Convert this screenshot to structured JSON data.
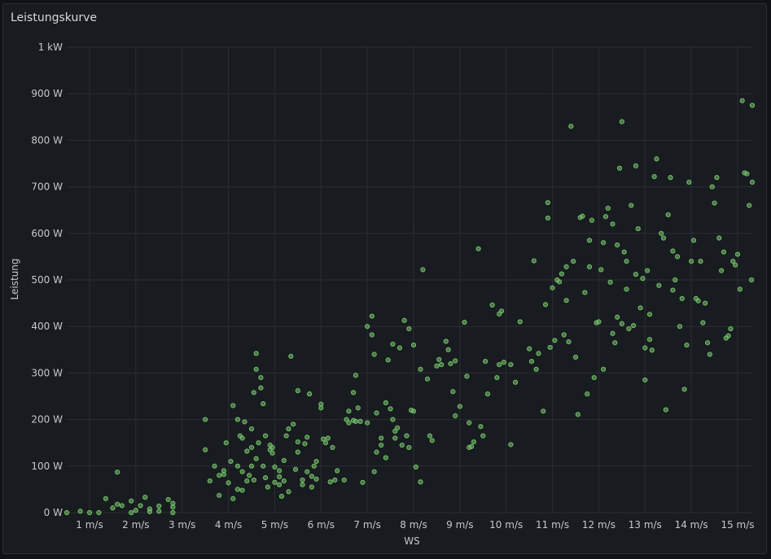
{
  "panel": {
    "title": "Leistungskurve"
  },
  "colors": {
    "background": "#111217",
    "panel": "#181b1f",
    "point": "#73bf69",
    "text": "#c7c8ca"
  },
  "chart_data": {
    "type": "scatter",
    "title": "Leistungskurve",
    "xlabel": "WS",
    "ylabel": "Leistung",
    "xlim": [
      0.25,
      15.5
    ],
    "ylim": [
      0,
      1000
    ],
    "grid": true,
    "legend": "none",
    "x_ticks": [
      {
        "value": 1,
        "label": "1 m/s"
      },
      {
        "value": 2,
        "label": "2 m/s"
      },
      {
        "value": 3,
        "label": "3 m/s"
      },
      {
        "value": 4,
        "label": "4 m/s"
      },
      {
        "value": 5,
        "label": "5 m/s"
      },
      {
        "value": 6,
        "label": "6 m/s"
      },
      {
        "value": 7,
        "label": "7 m/s"
      },
      {
        "value": 8,
        "label": "8 m/s"
      },
      {
        "value": 9,
        "label": "9 m/s"
      },
      {
        "value": 10,
        "label": "10 m/s"
      },
      {
        "value": 11,
        "label": "11 m/s"
      },
      {
        "value": 12,
        "label": "12 m/s"
      },
      {
        "value": 13,
        "label": "13 m/s"
      },
      {
        "value": 14,
        "label": "14 m/s"
      },
      {
        "value": 15,
        "label": "15 m/s"
      }
    ],
    "y_ticks": [
      {
        "value": 0,
        "label": "0 W"
      },
      {
        "value": 100,
        "label": "100 W"
      },
      {
        "value": 200,
        "label": "200 W"
      },
      {
        "value": 300,
        "label": "300 W"
      },
      {
        "value": 400,
        "label": "400 W"
      },
      {
        "value": 500,
        "label": "500 W"
      },
      {
        "value": 600,
        "label": "600 W"
      },
      {
        "value": 700,
        "label": "700 W"
      },
      {
        "value": 800,
        "label": "800 W"
      },
      {
        "value": 900,
        "label": "900 W"
      },
      {
        "value": 1000,
        "label": "1 kW"
      }
    ],
    "points": [
      [
        0.3,
        0
      ],
      [
        0.8,
        3
      ],
      [
        1.0,
        0
      ],
      [
        1.2,
        0
      ],
      [
        1.35,
        30
      ],
      [
        1.5,
        10
      ],
      [
        1.6,
        87
      ],
      [
        1.6,
        18
      ],
      [
        1.7,
        15
      ],
      [
        1.9,
        0
      ],
      [
        1.9,
        25
      ],
      [
        2.0,
        5
      ],
      [
        2.1,
        15
      ],
      [
        2.2,
        33
      ],
      [
        2.3,
        8
      ],
      [
        2.3,
        2
      ],
      [
        2.5,
        14
      ],
      [
        2.5,
        3
      ],
      [
        2.7,
        28
      ],
      [
        2.8,
        20
      ],
      [
        2.8,
        12
      ],
      [
        2.8,
        0
      ],
      [
        3.5,
        135
      ],
      [
        3.5,
        200
      ],
      [
        3.6,
        68
      ],
      [
        3.7,
        100
      ],
      [
        3.8,
        37
      ],
      [
        3.8,
        80
      ],
      [
        3.9,
        82
      ],
      [
        3.9,
        90
      ],
      [
        3.95,
        150
      ],
      [
        4.0,
        64
      ],
      [
        4.05,
        110
      ],
      [
        4.1,
        30
      ],
      [
        4.1,
        230
      ],
      [
        4.2,
        100
      ],
      [
        4.2,
        50
      ],
      [
        4.2,
        200
      ],
      [
        4.25,
        165
      ],
      [
        4.3,
        88
      ],
      [
        4.3,
        160
      ],
      [
        4.3,
        48
      ],
      [
        4.35,
        195
      ],
      [
        4.4,
        68
      ],
      [
        4.4,
        132
      ],
      [
        4.45,
        80
      ],
      [
        4.5,
        140
      ],
      [
        4.5,
        180
      ],
      [
        4.5,
        100
      ],
      [
        4.55,
        258
      ],
      [
        4.55,
        70
      ],
      [
        4.6,
        308
      ],
      [
        4.6,
        342
      ],
      [
        4.6,
        116
      ],
      [
        4.65,
        150
      ],
      [
        4.7,
        290
      ],
      [
        4.7,
        268
      ],
      [
        4.75,
        100
      ],
      [
        4.75,
        234
      ],
      [
        4.8,
        165
      ],
      [
        4.8,
        75
      ],
      [
        4.85,
        55
      ],
      [
        4.9,
        135
      ],
      [
        4.9,
        145
      ],
      [
        4.95,
        128
      ],
      [
        4.95,
        140
      ],
      [
        5.0,
        65
      ],
      [
        5.0,
        98
      ],
      [
        5.1,
        90
      ],
      [
        5.1,
        77
      ],
      [
        5.1,
        60
      ],
      [
        5.15,
        35
      ],
      [
        5.2,
        112
      ],
      [
        5.2,
        68
      ],
      [
        5.25,
        165
      ],
      [
        5.3,
        180
      ],
      [
        5.3,
        45
      ],
      [
        5.35,
        336
      ],
      [
        5.4,
        190
      ],
      [
        5.45,
        93
      ],
      [
        5.5,
        130
      ],
      [
        5.5,
        262
      ],
      [
        5.5,
        152
      ],
      [
        5.6,
        60
      ],
      [
        5.6,
        70
      ],
      [
        5.65,
        148
      ],
      [
        5.7,
        88
      ],
      [
        5.7,
        162
      ],
      [
        5.75,
        255
      ],
      [
        5.8,
        55
      ],
      [
        5.8,
        78
      ],
      [
        5.85,
        100
      ],
      [
        5.9,
        72
      ],
      [
        5.9,
        110
      ],
      [
        6.0,
        233
      ],
      [
        6.0,
        225
      ],
      [
        6.05,
        158
      ],
      [
        6.1,
        150
      ],
      [
        6.15,
        160
      ],
      [
        6.2,
        66
      ],
      [
        6.25,
        140
      ],
      [
        6.3,
        70
      ],
      [
        6.35,
        90
      ],
      [
        6.5,
        70
      ],
      [
        6.55,
        200
      ],
      [
        6.6,
        193
      ],
      [
        6.6,
        218
      ],
      [
        6.7,
        198
      ],
      [
        6.7,
        258
      ],
      [
        6.75,
        295
      ],
      [
        6.75,
        196
      ],
      [
        6.8,
        225
      ],
      [
        6.85,
        196
      ],
      [
        6.9,
        65
      ],
      [
        7.0,
        400
      ],
      [
        7.0,
        193
      ],
      [
        7.1,
        382
      ],
      [
        7.1,
        422
      ],
      [
        7.15,
        340
      ],
      [
        7.15,
        88
      ],
      [
        7.2,
        214
      ],
      [
        7.2,
        130
      ],
      [
        7.3,
        145
      ],
      [
        7.3,
        160
      ],
      [
        7.4,
        118
      ],
      [
        7.4,
        236
      ],
      [
        7.45,
        328
      ],
      [
        7.5,
        223
      ],
      [
        7.55,
        362
      ],
      [
        7.55,
        200
      ],
      [
        7.6,
        160
      ],
      [
        7.6,
        175
      ],
      [
        7.65,
        182
      ],
      [
        7.7,
        354
      ],
      [
        7.75,
        145
      ],
      [
        7.8,
        413
      ],
      [
        7.85,
        165
      ],
      [
        7.9,
        395
      ],
      [
        7.9,
        140
      ],
      [
        7.95,
        220
      ],
      [
        8.0,
        218
      ],
      [
        8.0,
        360
      ],
      [
        8.05,
        98
      ],
      [
        8.15,
        308
      ],
      [
        8.15,
        66
      ],
      [
        8.2,
        522
      ],
      [
        8.3,
        287
      ],
      [
        8.35,
        165
      ],
      [
        8.4,
        155
      ],
      [
        8.5,
        315
      ],
      [
        8.55,
        329
      ],
      [
        8.6,
        318
      ],
      [
        8.7,
        368
      ],
      [
        8.75,
        350
      ],
      [
        8.8,
        320
      ],
      [
        8.85,
        260
      ],
      [
        8.9,
        208
      ],
      [
        8.9,
        326
      ],
      [
        9.0,
        228
      ],
      [
        9.1,
        409
      ],
      [
        9.15,
        293
      ],
      [
        9.2,
        140
      ],
      [
        9.2,
        193
      ],
      [
        9.25,
        142
      ],
      [
        9.3,
        152
      ],
      [
        9.4,
        567
      ],
      [
        9.45,
        185
      ],
      [
        9.5,
        165
      ],
      [
        9.55,
        325
      ],
      [
        9.6,
        255
      ],
      [
        9.7,
        446
      ],
      [
        9.8,
        290
      ],
      [
        9.85,
        427
      ],
      [
        9.85,
        318
      ],
      [
        9.9,
        433
      ],
      [
        9.95,
        323
      ],
      [
        10.1,
        146
      ],
      [
        10.1,
        318
      ],
      [
        10.2,
        280
      ],
      [
        10.3,
        410
      ],
      [
        10.5,
        352
      ],
      [
        10.55,
        325
      ],
      [
        10.6,
        541
      ],
      [
        10.65,
        308
      ],
      [
        10.7,
        342
      ],
      [
        10.8,
        218
      ],
      [
        10.85,
        447
      ],
      [
        10.9,
        666
      ],
      [
        10.9,
        633
      ],
      [
        10.95,
        355
      ],
      [
        11.0,
        483
      ],
      [
        11.05,
        370
      ],
      [
        11.1,
        500
      ],
      [
        11.15,
        496
      ],
      [
        11.2,
        513
      ],
      [
        11.25,
        382
      ],
      [
        11.3,
        528
      ],
      [
        11.3,
        456
      ],
      [
        11.35,
        367
      ],
      [
        11.4,
        830
      ],
      [
        11.45,
        540
      ],
      [
        11.5,
        334
      ],
      [
        11.55,
        211
      ],
      [
        11.6,
        634
      ],
      [
        11.65,
        637
      ],
      [
        11.7,
        473
      ],
      [
        11.75,
        255
      ],
      [
        11.8,
        528
      ],
      [
        11.8,
        585
      ],
      [
        11.85,
        628
      ],
      [
        11.9,
        290
      ],
      [
        11.95,
        408
      ],
      [
        12.0,
        410
      ],
      [
        12.05,
        522
      ],
      [
        12.1,
        580
      ],
      [
        12.1,
        308
      ],
      [
        12.15,
        636
      ],
      [
        12.2,
        654
      ],
      [
        12.25,
        495
      ],
      [
        12.3,
        620
      ],
      [
        12.3,
        385
      ],
      [
        12.35,
        365
      ],
      [
        12.4,
        575
      ],
      [
        12.4,
        420
      ],
      [
        12.45,
        740
      ],
      [
        12.5,
        406
      ],
      [
        12.5,
        840
      ],
      [
        12.55,
        560
      ],
      [
        12.6,
        540
      ],
      [
        12.6,
        480
      ],
      [
        12.65,
        395
      ],
      [
        12.7,
        660
      ],
      [
        12.75,
        402
      ],
      [
        12.8,
        512
      ],
      [
        12.8,
        745
      ],
      [
        12.85,
        610
      ],
      [
        12.9,
        440
      ],
      [
        12.95,
        503
      ],
      [
        13.0,
        285
      ],
      [
        13.0,
        354
      ],
      [
        13.05,
        520
      ],
      [
        13.1,
        372
      ],
      [
        13.1,
        426
      ],
      [
        13.15,
        349
      ],
      [
        13.2,
        722
      ],
      [
        13.25,
        760
      ],
      [
        13.3,
        488
      ],
      [
        13.35,
        600
      ],
      [
        13.4,
        590
      ],
      [
        13.45,
        221
      ],
      [
        13.5,
        640
      ],
      [
        13.55,
        720
      ],
      [
        13.6,
        562
      ],
      [
        13.6,
        478
      ],
      [
        13.65,
        500
      ],
      [
        13.7,
        550
      ],
      [
        13.75,
        400
      ],
      [
        13.8,
        460
      ],
      [
        13.85,
        265
      ],
      [
        13.9,
        360
      ],
      [
        13.95,
        710
      ],
      [
        14.0,
        540
      ],
      [
        14.05,
        585
      ],
      [
        14.1,
        460
      ],
      [
        14.15,
        455
      ],
      [
        14.2,
        540
      ],
      [
        14.25,
        408
      ],
      [
        14.3,
        450
      ],
      [
        14.35,
        365
      ],
      [
        14.4,
        340
      ],
      [
        14.45,
        700
      ],
      [
        14.5,
        665
      ],
      [
        14.55,
        720
      ],
      [
        14.6,
        590
      ],
      [
        14.65,
        520
      ],
      [
        14.7,
        560
      ],
      [
        14.75,
        375
      ],
      [
        14.8,
        380
      ],
      [
        14.85,
        395
      ],
      [
        14.9,
        540
      ],
      [
        14.95,
        532
      ],
      [
        15.0,
        555
      ],
      [
        15.05,
        480
      ],
      [
        15.1,
        885
      ],
      [
        15.15,
        730
      ],
      [
        15.2,
        728
      ],
      [
        15.25,
        660
      ],
      [
        15.3,
        500
      ],
      [
        15.35,
        710
      ],
      [
        15.4,
        875
      ]
    ]
  }
}
